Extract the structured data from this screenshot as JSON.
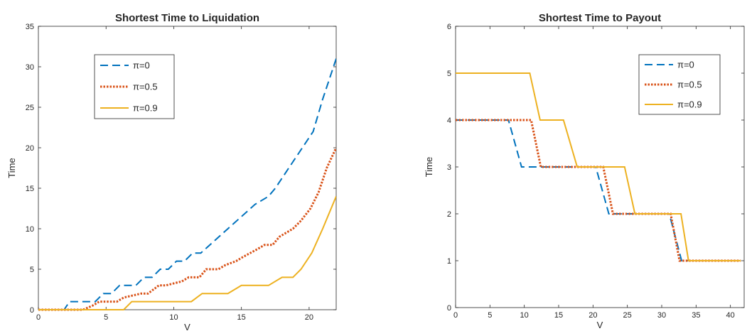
{
  "chart_data": [
    {
      "type": "line",
      "title": "Shortest Time to Liquidation",
      "xlabel": "V",
      "ylabel": "Time",
      "xlim": [
        0,
        22
      ],
      "ylim": [
        0,
        35
      ],
      "xticks": [
        0,
        5,
        10,
        15,
        20
      ],
      "yticks": [
        0,
        5,
        10,
        15,
        20,
        25,
        30,
        35
      ],
      "grid": false,
      "legend_position": "top-left",
      "series": [
        {
          "name": "π=0",
          "color": "#0072BD",
          "style": "dashed",
          "x": [
            0,
            1.9,
            2.3,
            3.6,
            4.2,
            4.8,
            5.4,
            6.0,
            6.6,
            7.2,
            7.8,
            8.4,
            9.0,
            9.6,
            10.2,
            10.8,
            11.4,
            12.0,
            13.0,
            14.0,
            15.0,
            16.0,
            17.0,
            17.5,
            18.5,
            19.5,
            20.3,
            21.0,
            22.0
          ],
          "y": [
            0,
            0,
            1,
            1,
            1,
            2,
            2,
            3,
            3,
            3,
            4,
            4,
            5,
            5,
            6,
            6,
            7,
            7,
            8.5,
            10,
            11.5,
            13,
            14,
            15,
            17.5,
            20,
            22,
            26,
            31
          ]
        },
        {
          "name": "π=0.5",
          "color": "#D95319",
          "style": "dotted",
          "x": [
            0,
            3.3,
            4.0,
            4.5,
            5.8,
            6.3,
            7.6,
            8.1,
            8.9,
            9.4,
            10.6,
            11.1,
            11.9,
            12.4,
            13.3,
            13.8,
            14.6,
            15.1,
            16.2,
            16.7,
            17.3,
            17.8,
            18.8,
            19.4,
            20.1,
            20.7,
            21.3,
            22.0
          ],
          "y": [
            0,
            0,
            0.5,
            1,
            1,
            1.5,
            2,
            2,
            3,
            3,
            3.5,
            4,
            4,
            5,
            5,
            5.5,
            6,
            6.5,
            7.5,
            8,
            8,
            9,
            10,
            11,
            12.5,
            14.5,
            17.5,
            20
          ]
        },
        {
          "name": "π=0.9",
          "color": "#EDB120",
          "style": "solid",
          "x": [
            0,
            6.3,
            6.9,
            11.3,
            12.1,
            14.0,
            15.0,
            17.0,
            18.0,
            18.8,
            19.4,
            20.2,
            21.0,
            22.0
          ],
          "y": [
            0,
            0,
            1,
            1,
            2,
            2,
            3,
            3,
            4,
            4,
            5,
            7,
            10,
            14
          ]
        }
      ]
    },
    {
      "type": "line",
      "title": "Shortest Time to Payout",
      "xlabel": "V",
      "ylabel": "Time",
      "xlim": [
        0,
        42
      ],
      "ylim": [
        0,
        6
      ],
      "xticks": [
        0,
        5,
        10,
        15,
        20,
        25,
        30,
        35,
        40
      ],
      "yticks": [
        0,
        1,
        2,
        3,
        4,
        5,
        6
      ],
      "grid": false,
      "legend_position": "top-right",
      "series": [
        {
          "name": "π=0",
          "color": "#0072BD",
          "style": "dashed",
          "x": [
            0,
            7.7,
            9.6,
            20.4,
            22.3,
            31.1,
            32.9,
            41.5
          ],
          "y": [
            4,
            4,
            3,
            3,
            2,
            2,
            1,
            1
          ]
        },
        {
          "name": "π=0.5",
          "color": "#D95319",
          "style": "dotted",
          "x": [
            0,
            11.0,
            12.4,
            21.5,
            22.9,
            31.3,
            32.6,
            41.5
          ],
          "y": [
            4,
            4,
            3,
            3,
            2,
            2,
            1,
            1
          ]
        },
        {
          "name": "π=0.9",
          "color": "#EDB120",
          "style": "solid",
          "x": [
            0,
            10.8,
            12.3,
            15.7,
            17.7,
            24.6,
            26.1,
            32.8,
            33.9,
            41.5
          ],
          "y": [
            5,
            5,
            4,
            4,
            3,
            3,
            2,
            2,
            1,
            1
          ]
        }
      ]
    }
  ]
}
